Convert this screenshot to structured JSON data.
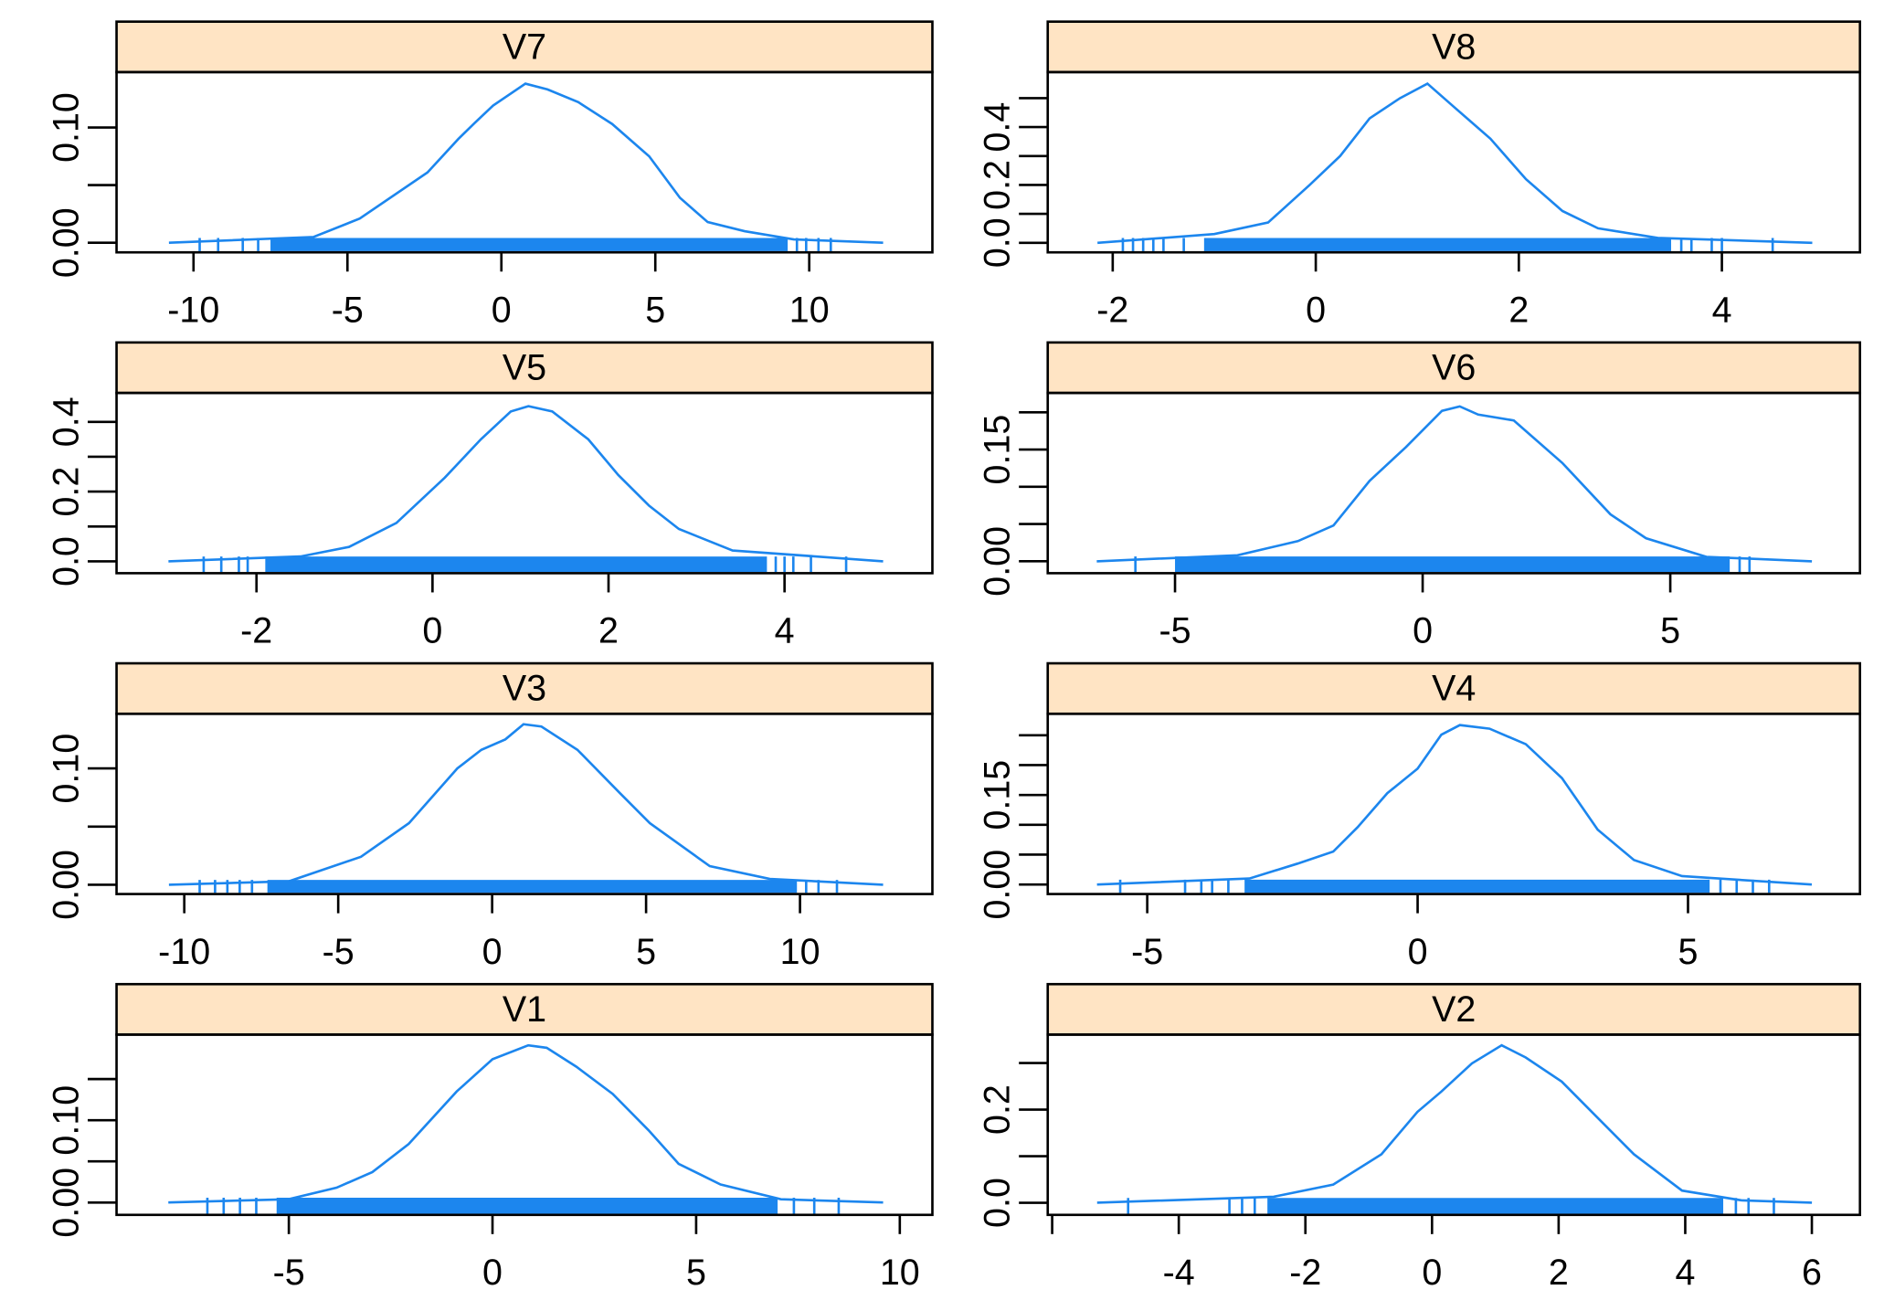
{
  "chart_data": [
    {
      "type": "density",
      "title": "V7",
      "color": "#1c86ee",
      "x": [
        -10.8,
        -6.1,
        -4.6,
        -2.4,
        -1.4,
        -0.86,
        -0.27,
        0.78,
        1.5,
        2.5,
        3.6,
        4.8,
        5.8,
        6.7,
        7.9,
        9.5,
        12.4
      ],
      "values": [
        0,
        0.005,
        0.021,
        0.061,
        0.09,
        0.104,
        0.119,
        0.138,
        0.133,
        0.122,
        0.103,
        0.075,
        0.039,
        0.018,
        0.01,
        0.003,
        0
      ],
      "rug": [
        -9.8,
        -9.2,
        -8.4,
        -7.9,
        9.6,
        9.9,
        10.3,
        10.7
      ],
      "rug_range": [
        -7.5,
        9.3
      ],
      "xlim": [
        -12.5,
        14.0
      ],
      "ylim": [
        -0.0083,
        0.148
      ],
      "xticks": [
        -10,
        -5,
        0,
        5,
        10
      ],
      "yticks": [
        {
          "value": 0,
          "label": "0.00"
        },
        {
          "value": 0.1,
          "label": "0.10"
        }
      ],
      "yticks_unlabeled": [
        0.05
      ]
    },
    {
      "type": "density",
      "title": "V8",
      "color": "#1c86ee",
      "x": [
        -2.15,
        -1.0,
        -0.47,
        -0.06,
        0.24,
        0.53,
        0.83,
        1.1,
        1.36,
        1.72,
        2.07,
        2.43,
        2.78,
        3.37,
        4.89
      ],
      "values": [
        0,
        0.03,
        0.07,
        0.2,
        0.3,
        0.43,
        0.5,
        0.55,
        0.47,
        0.36,
        0.22,
        0.11,
        0.05,
        0.017,
        0
      ],
      "rug": [
        -1.9,
        -1.8,
        -1.7,
        -1.6,
        -1.5,
        -1.3,
        3.6,
        3.7,
        3.9,
        4.0,
        4.5
      ],
      "rug_range": [
        -1.1,
        3.5
      ],
      "xlim": [
        -2.64,
        5.36
      ],
      "ylim": [
        -0.033,
        0.59
      ],
      "xticks": [
        -2,
        0,
        2,
        4
      ],
      "yticks": [
        {
          "value": 0,
          "label": "0.0"
        },
        0.2,
        0.4
      ],
      "yticks_unlabeled": [
        0.1,
        0.3,
        0.5
      ]
    },
    {
      "type": "density",
      "title": "V5",
      "color": "#1c86ee",
      "x": [
        -3.0,
        -1.5,
        -0.95,
        -0.41,
        0.14,
        0.55,
        0.89,
        1.09,
        1.36,
        1.77,
        2.11,
        2.46,
        2.8,
        3.41,
        5.12
      ],
      "values": [
        0,
        0.014,
        0.041,
        0.11,
        0.24,
        0.35,
        0.43,
        0.445,
        0.43,
        0.35,
        0.248,
        0.16,
        0.093,
        0.031,
        0
      ],
      "rug": [
        -2.6,
        -2.4,
        -2.2,
        -2.1,
        3.9,
        4.0,
        4.1,
        4.3,
        4.7
      ],
      "rug_range": [
        -1.9,
        3.8
      ],
      "xlim": [
        -3.59,
        5.68
      ],
      "ylim": [
        -0.034,
        0.483
      ],
      "xticks": [
        -2,
        0,
        2,
        4
      ],
      "yticks": [
        {
          "value": 0,
          "label": "0.0"
        },
        0.2,
        0.4
      ],
      "yticks_unlabeled": [
        0.1,
        0.3
      ]
    },
    {
      "type": "density",
      "title": "V6",
      "color": "#1c86ee",
      "x": [
        -6.58,
        -3.74,
        -2.52,
        -1.8,
        -1.07,
        -0.34,
        0.39,
        0.75,
        1.12,
        1.84,
        2.82,
        3.79,
        4.51,
        5.73,
        7.86
      ],
      "values": [
        0,
        0.008,
        0.027,
        0.048,
        0.108,
        0.153,
        0.202,
        0.208,
        0.197,
        0.189,
        0.132,
        0.063,
        0.031,
        0.006,
        0
      ],
      "rug": [
        -5.8,
        6.4,
        6.6
      ],
      "rug_range": [
        -5.0,
        6.2
      ],
      "xlim": [
        -7.57,
        8.83
      ],
      "ylim": [
        -0.016,
        0.226
      ],
      "xticks": [
        -5,
        0,
        5
      ],
      "yticks": [
        {
          "value": 0,
          "label": "0.00"
        },
        0.15
      ],
      "yticks_unlabeled": [
        0.05,
        0.1,
        0.2
      ]
    },
    {
      "type": "density",
      "title": "V3",
      "color": "#1c86ee",
      "x": [
        -10.5,
        -6.6,
        -4.26,
        -2.7,
        -1.13,
        -0.35,
        0.43,
        1.02,
        1.6,
        2.77,
        4.14,
        5.12,
        7.07,
        9.02,
        12.7
      ],
      "values": [
        0,
        0.003,
        0.024,
        0.053,
        0.1,
        0.116,
        0.125,
        0.138,
        0.136,
        0.116,
        0.079,
        0.053,
        0.016,
        0.005,
        0
      ],
      "rug": [
        -9.5,
        -9.0,
        -8.6,
        -8.2,
        -7.8,
        10.2,
        10.6,
        11.2
      ],
      "rug_range": [
        -7.3,
        9.9
      ],
      "xlim": [
        -12.2,
        14.3
      ],
      "ylim": [
        -0.008,
        0.147
      ],
      "xticks": [
        -10,
        -5,
        0,
        5,
        10
      ],
      "yticks": [
        {
          "value": 0,
          "label": "0.00"
        },
        {
          "value": 0.1,
          "label": "0.10"
        }
      ],
      "yticks_unlabeled": [
        0.05
      ]
    },
    {
      "type": "density",
      "title": "V4",
      "color": "#1c86ee",
      "x": [
        -5.93,
        -3.11,
        -2.22,
        -1.56,
        -1.11,
        -0.56,
        0,
        0.44,
        0.78,
        1.33,
        2.0,
        2.67,
        3.33,
        4.0,
        4.89,
        7.29
      ],
      "values": [
        0,
        0.01,
        0.035,
        0.055,
        0.096,
        0.153,
        0.194,
        0.251,
        0.267,
        0.261,
        0.235,
        0.178,
        0.092,
        0.041,
        0.014,
        0
      ],
      "rug": [
        -5.5,
        -4.3,
        -4.0,
        -3.8,
        -3.5,
        5.6,
        5.9,
        6.2,
        6.5
      ],
      "rug_range": [
        -3.2,
        5.4
      ],
      "xlim": [
        -6.84,
        8.18
      ],
      "ylim": [
        -0.016,
        0.286
      ],
      "xticks": [
        -5,
        0,
        5
      ],
      "yticks": [
        {
          "value": 0,
          "label": "0.00"
        },
        0.15
      ],
      "yticks_unlabeled": [
        0.05,
        0.1,
        0.2,
        0.25
      ]
    },
    {
      "type": "density",
      "title": "V1",
      "color": "#1c86ee",
      "x": [
        -7.96,
        -5.01,
        -3.83,
        -2.95,
        -2.06,
        -0.88,
        0,
        0.88,
        1.33,
        2.06,
        2.95,
        3.83,
        4.57,
        5.6,
        7.08,
        9.59
      ],
      "values": [
        0,
        0.004,
        0.018,
        0.037,
        0.071,
        0.135,
        0.174,
        0.191,
        0.188,
        0.165,
        0.132,
        0.088,
        0.047,
        0.022,
        0.004,
        0
      ],
      "rug": [
        -7.0,
        -6.6,
        -6.2,
        -5.8,
        7.4,
        7.9,
        8.5
      ],
      "rug_range": [
        -5.3,
        7.0
      ],
      "xlim": [
        -9.23,
        10.8
      ],
      "ylim": [
        -0.015,
        0.204
      ],
      "xticks": [
        -5,
        0,
        5,
        10
      ],
      "yticks": [
        {
          "value": 0,
          "label": "0.00"
        },
        {
          "value": 0.1,
          "label": "0.10"
        }
      ],
      "yticks_unlabeled": [
        0.05,
        0.15
      ]
    },
    {
      "type": "density",
      "title": "V2",
      "color": "#1c86ee",
      "x": [
        -5.29,
        -2.5,
        -1.56,
        -0.8,
        -0.23,
        0.15,
        0.63,
        1.1,
        1.48,
        2.05,
        2.62,
        3.19,
        3.95,
        4.9,
        6.0
      ],
      "values": [
        0,
        0.013,
        0.039,
        0.104,
        0.195,
        0.239,
        0.299,
        0.338,
        0.312,
        0.26,
        0.182,
        0.104,
        0.026,
        0.005,
        0
      ],
      "rug": [
        -4.8,
        -3.2,
        -3.0,
        -2.8,
        4.8,
        5.0,
        5.4
      ],
      "rug_range": [
        -2.6,
        4.6
      ],
      "xlim": [
        -6.07,
        6.76
      ],
      "ylim": [
        -0.026,
        0.361
      ],
      "xticks": [
        -4,
        -2,
        0,
        2,
        4,
        6
      ],
      "xticks_unlabeled": [
        -6
      ],
      "yticks": [
        {
          "value": 0,
          "label": "0.0"
        },
        0.2
      ],
      "yticks_unlabeled": [
        0.1,
        0.3
      ]
    }
  ]
}
